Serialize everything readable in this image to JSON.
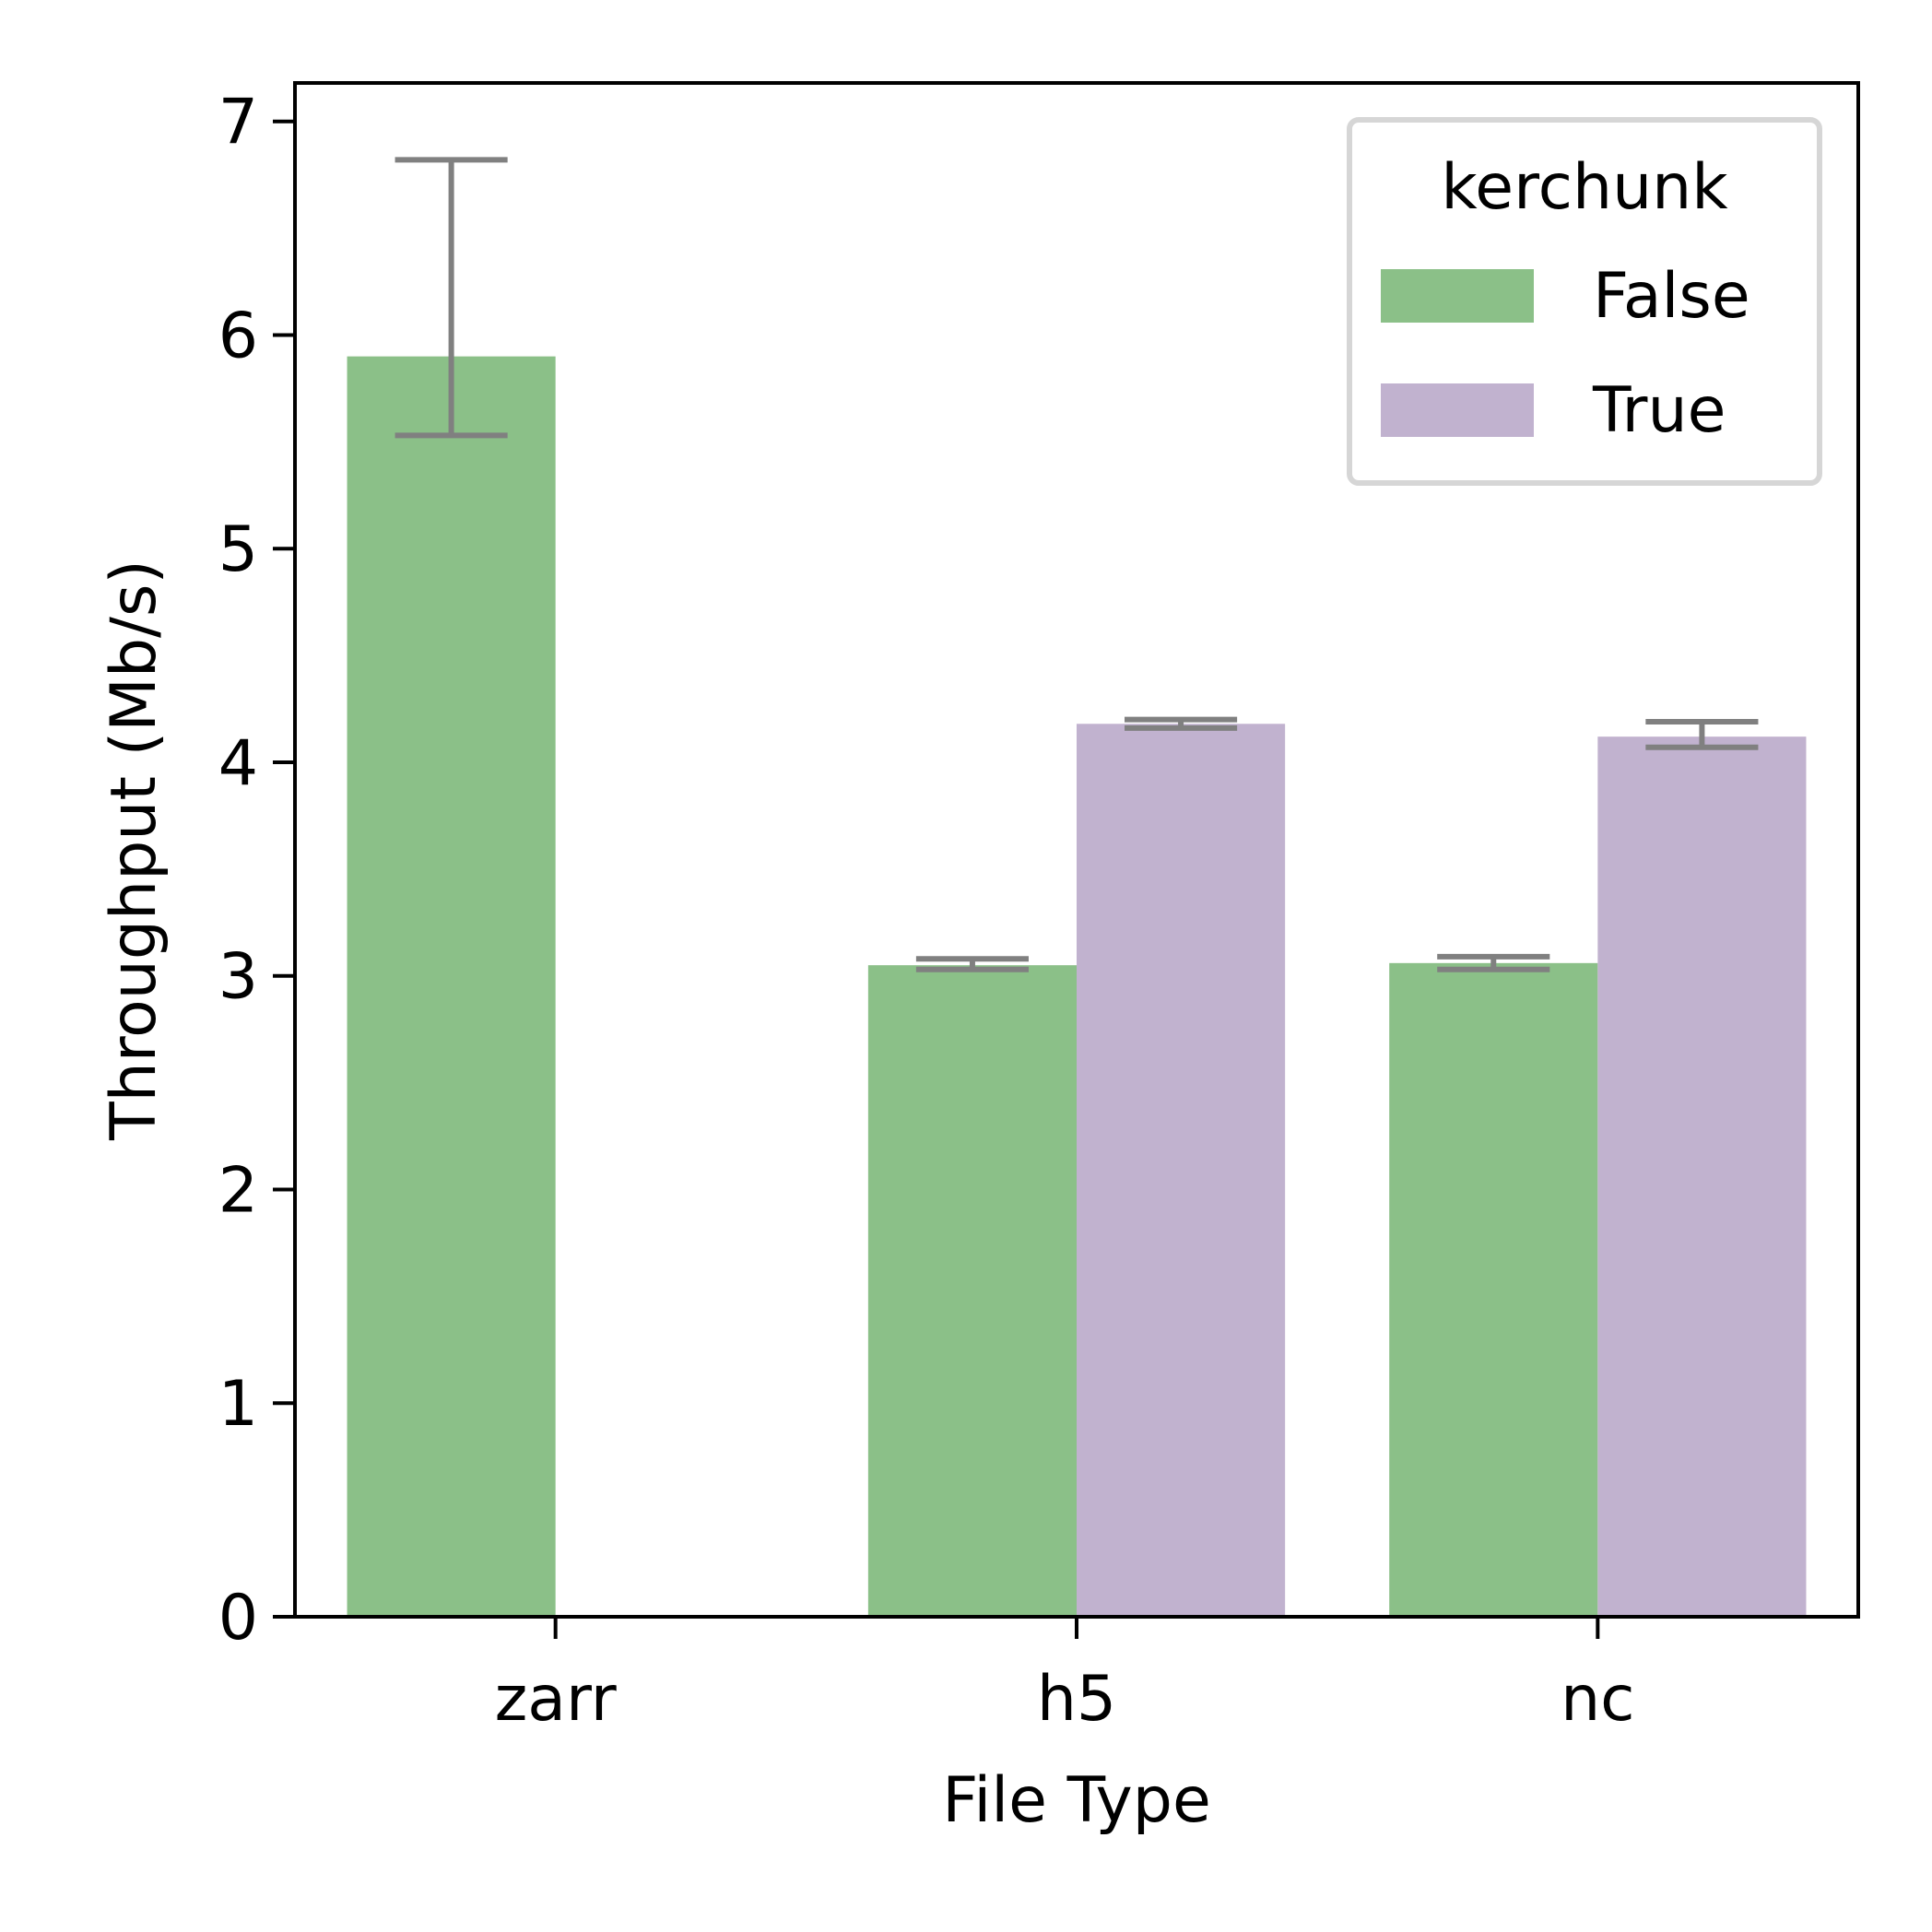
{
  "chart_data": {
    "type": "bar",
    "categories": [
      "zarr",
      "h5",
      "nc"
    ],
    "series": [
      {
        "name": "False",
        "color": "#8bc088",
        "values": [
          5.9,
          3.05,
          3.06
        ],
        "error_low": [
          5.53,
          3.03,
          3.03
        ],
        "error_high": [
          6.82,
          3.08,
          3.09
        ]
      },
      {
        "name": "True",
        "color": "#c1b2cf",
        "values": [
          null,
          4.18,
          4.12
        ],
        "error_low": [
          null,
          4.16,
          4.07
        ],
        "error_high": [
          null,
          4.2,
          4.19
        ]
      }
    ],
    "title": "",
    "xlabel": "File Type",
    "ylabel": "Throughput (Mb/s)",
    "ylim": [
      0,
      7.18
    ],
    "yticks": [
      0,
      1,
      2,
      3,
      4,
      5,
      6,
      7
    ],
    "legend": {
      "title": "kerchunk",
      "placement": "top-right"
    },
    "grid": false,
    "error_bar_color": "#808080"
  }
}
